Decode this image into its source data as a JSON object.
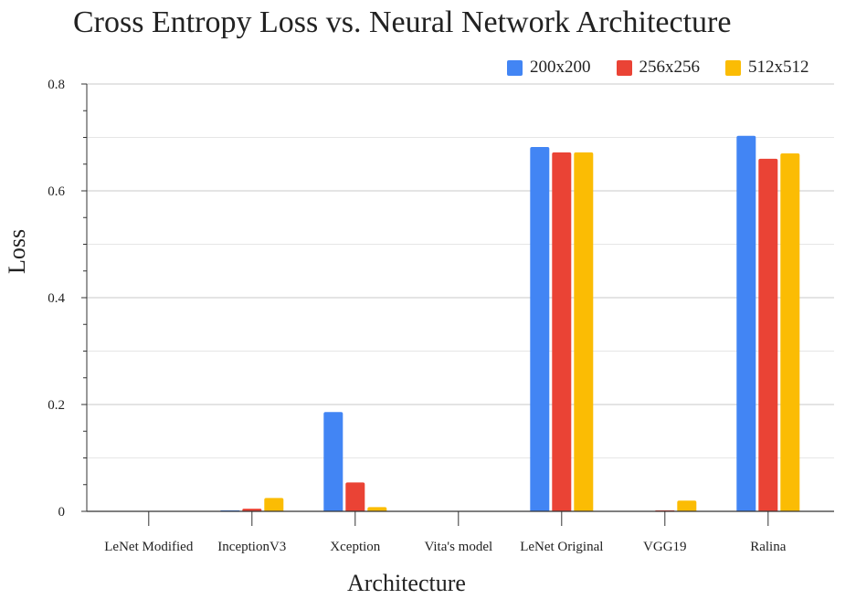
{
  "chart_data": {
    "type": "bar",
    "title": "Cross Entropy Loss vs. Neural Network Architecture",
    "xlabel": "Architecture",
    "ylabel": "Loss",
    "categories": [
      "LeNet Modified",
      "InceptionV3",
      "Xception",
      "Vita's model",
      "LeNet Original",
      "VGG19",
      "Ralina"
    ],
    "series": [
      {
        "name": "200x200",
        "color": "#4285F4",
        "values": [
          0,
          0.002,
          0.186,
          0,
          0.682,
          0,
          0.703
        ]
      },
      {
        "name": "256x256",
        "color": "#EA4335",
        "values": [
          0,
          0.005,
          0.054,
          0,
          0.672,
          0.002,
          0.66
        ]
      },
      {
        "name": "512x512",
        "color": "#FBBC04",
        "values": [
          0,
          0.025,
          0.008,
          0,
          0.672,
          0.02,
          0.67
        ]
      }
    ],
    "ylim": [
      0,
      0.8
    ],
    "yticks": [
      "0",
      "0.2",
      "0.4",
      "0.6",
      "0.8"
    ],
    "grid": true,
    "legend_position": "top-right"
  }
}
